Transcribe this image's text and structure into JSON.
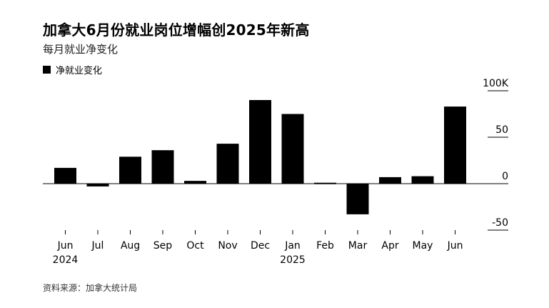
{
  "title": "加拿大6月份就业岗位增幅创2025年新高",
  "subtitle": "每月就业净变化",
  "source": "资料来源：加拿大统计局",
  "chart_data": {
    "type": "bar",
    "legend": [
      "净就业变化"
    ],
    "categories": [
      "Jun",
      "Jul",
      "Aug",
      "Sep",
      "Oct",
      "Nov",
      "Dec",
      "Jan",
      "Feb",
      "Mar",
      "Apr",
      "May",
      "Jun"
    ],
    "year_labels": [
      "2024",
      "",
      "",
      "",
      "",
      "",
      "",
      "2025",
      "",
      "",
      "",
      "",
      ""
    ],
    "series": [
      {
        "name": "净就业变化",
        "values": [
          17,
          -3,
          29,
          36,
          3,
          43,
          90,
          75,
          1,
          -33,
          7,
          8,
          83
        ]
      }
    ],
    "y_ticks": [
      "100K",
      "50",
      "0",
      "-50"
    ],
    "y_tick_values": [
      100,
      50,
      0,
      -50
    ],
    "ylim": [
      -50,
      100
    ],
    "color": "#000000",
    "axis_position": "right"
  }
}
